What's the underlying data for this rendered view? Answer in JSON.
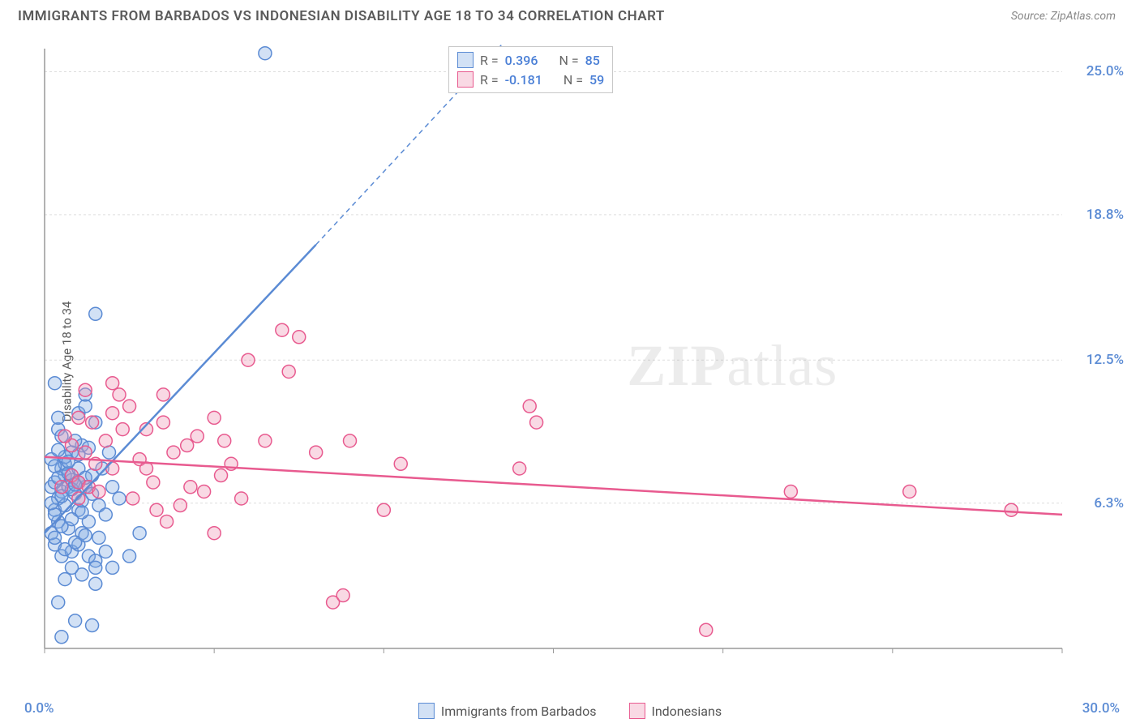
{
  "title": "IMMIGRANTS FROM BARBADOS VS INDONESIAN DISABILITY AGE 18 TO 34 CORRELATION CHART",
  "source": "Source: ZipAtlas.com",
  "watermark": {
    "bold": "ZIP",
    "rest": "atlas"
  },
  "y_axis_label": "Disability Age 18 to 34",
  "chart": {
    "type": "scatter",
    "xlim": [
      0,
      30
    ],
    "ylim": [
      0,
      26
    ],
    "x_ticks": [
      0,
      5,
      10,
      15,
      20,
      25,
      30
    ],
    "y_ticks": [
      6.3,
      12.5,
      18.8,
      25.0
    ],
    "x_origin_label": "0.0%",
    "x_max_label": "30.0%",
    "y_tick_labels": [
      "6.3%",
      "12.5%",
      "18.8%",
      "25.0%"
    ],
    "background_color": "#ffffff",
    "grid_color": "#dddddd",
    "axis_color": "#999999",
    "marker_radius": 8,
    "marker_stroke_width": 1.5,
    "line_width": 2.5
  },
  "series": [
    {
      "name": "Immigrants from Barbados",
      "fill": "rgba(126,169,227,0.35)",
      "stroke": "#5b8bd4",
      "R": "0.396",
      "N": "85",
      "regression": {
        "x1": 0,
        "y1": 5.0,
        "x2": 8.0,
        "y2": 17.5,
        "dash_from_x": 8.0,
        "dash_to_x": 14.0,
        "dash_to_y": 27.0
      },
      "points": [
        [
          0.2,
          7.0
        ],
        [
          0.3,
          7.2
        ],
        [
          0.4,
          6.5
        ],
        [
          0.5,
          6.8
        ],
        [
          0.6,
          7.5
        ],
        [
          0.3,
          6.0
        ],
        [
          0.4,
          5.5
        ],
        [
          0.7,
          7.0
        ],
        [
          0.8,
          7.3
        ],
        [
          0.5,
          7.8
        ],
        [
          0.6,
          8.0
        ],
        [
          0.9,
          6.7
        ],
        [
          1.0,
          7.2
        ],
        [
          0.4,
          9.5
        ],
        [
          1.2,
          7.0
        ],
        [
          0.3,
          4.5
        ],
        [
          0.5,
          4.0
        ],
        [
          0.8,
          4.2
        ],
        [
          1.0,
          4.5
        ],
        [
          1.3,
          4.0
        ],
        [
          1.5,
          3.8
        ],
        [
          1.8,
          4.2
        ],
        [
          0.6,
          3.0
        ],
        [
          1.1,
          3.2
        ],
        [
          0.4,
          2.0
        ],
        [
          0.9,
          1.2
        ],
        [
          1.4,
          1.0
        ],
        [
          0.5,
          0.5
        ],
        [
          0.3,
          11.5
        ],
        [
          1.0,
          10.2
        ],
        [
          0.4,
          10.0
        ],
        [
          1.5,
          9.8
        ],
        [
          1.2,
          10.5
        ],
        [
          0.8,
          8.5
        ],
        [
          1.0,
          6.0
        ],
        [
          1.3,
          5.5
        ],
        [
          1.6,
          6.2
        ],
        [
          1.8,
          5.8
        ],
        [
          2.0,
          7.0
        ],
        [
          2.2,
          6.5
        ],
        [
          2.5,
          4.0
        ],
        [
          2.8,
          5.0
        ],
        [
          2.0,
          3.5
        ],
        [
          1.5,
          2.8
        ],
        [
          0.7,
          5.2
        ],
        [
          1.1,
          8.8
        ],
        [
          0.2,
          8.2
        ],
        [
          0.6,
          6.2
        ],
        [
          1.4,
          7.5
        ],
        [
          1.7,
          7.8
        ],
        [
          1.9,
          8.5
        ],
        [
          0.9,
          9.0
        ],
        [
          0.5,
          9.2
        ],
        [
          0.3,
          5.8
        ],
        [
          1.1,
          5.0
        ],
        [
          1.6,
          4.8
        ],
        [
          0.8,
          3.5
        ],
        [
          1.2,
          11.0
        ],
        [
          1.5,
          14.5
        ],
        [
          6.5,
          25.8
        ],
        [
          0.4,
          7.4
        ],
        [
          0.7,
          7.6
        ],
        [
          1.0,
          7.8
        ],
        [
          0.2,
          6.3
        ],
        [
          0.5,
          6.6
        ],
        [
          0.8,
          6.9
        ],
        [
          1.1,
          6.4
        ],
        [
          1.4,
          6.7
        ],
        [
          0.3,
          7.9
        ],
        [
          0.6,
          8.3
        ],
        [
          0.9,
          7.1
        ],
        [
          1.2,
          7.4
        ],
        [
          0.4,
          8.6
        ],
        [
          0.7,
          8.1
        ],
        [
          1.0,
          8.4
        ],
        [
          1.3,
          8.7
        ],
        [
          0.2,
          5.0
        ],
        [
          0.5,
          5.3
        ],
        [
          0.8,
          5.6
        ],
        [
          1.1,
          5.9
        ],
        [
          0.3,
          4.8
        ],
        [
          0.6,
          4.3
        ],
        [
          0.9,
          4.6
        ],
        [
          1.2,
          4.9
        ],
        [
          1.5,
          3.5
        ]
      ]
    },
    {
      "name": "Indonesians",
      "fill": "rgba(238,145,177,0.35)",
      "stroke": "#e85a8f",
      "R": "-0.181",
      "N": "59",
      "regression": {
        "x1": 0,
        "y1": 8.3,
        "x2": 30,
        "y2": 5.8,
        "dash_from_x": null
      },
      "points": [
        [
          0.5,
          7.0
        ],
        [
          0.8,
          7.5
        ],
        [
          1.0,
          7.2
        ],
        [
          1.2,
          8.5
        ],
        [
          1.5,
          8.0
        ],
        [
          1.8,
          9.0
        ],
        [
          2.0,
          7.8
        ],
        [
          2.5,
          10.5
        ],
        [
          2.2,
          11.0
        ],
        [
          3.0,
          9.5
        ],
        [
          3.2,
          7.2
        ],
        [
          3.5,
          11.0
        ],
        [
          3.8,
          8.5
        ],
        [
          4.0,
          6.2
        ],
        [
          4.2,
          8.8
        ],
        [
          4.5,
          9.2
        ],
        [
          5.0,
          5.0
        ],
        [
          5.2,
          7.5
        ],
        [
          5.5,
          8.0
        ],
        [
          5.8,
          6.5
        ],
        [
          6.0,
          12.5
        ],
        [
          6.5,
          9.0
        ],
        [
          7.0,
          13.8
        ],
        [
          7.2,
          12.0
        ],
        [
          7.5,
          13.5
        ],
        [
          8.0,
          8.5
        ],
        [
          8.5,
          2.0
        ],
        [
          8.8,
          2.3
        ],
        [
          9.0,
          9.0
        ],
        [
          10.0,
          6.0
        ],
        [
          10.5,
          8.0
        ],
        [
          14.0,
          7.8
        ],
        [
          14.3,
          10.5
        ],
        [
          14.5,
          9.8
        ],
        [
          19.5,
          0.8
        ],
        [
          22.0,
          6.8
        ],
        [
          25.5,
          6.8
        ],
        [
          28.5,
          6.0
        ],
        [
          1.0,
          6.5
        ],
        [
          1.3,
          7.0
        ],
        [
          1.6,
          6.8
        ],
        [
          2.3,
          9.5
        ],
        [
          2.8,
          8.2
        ],
        [
          3.3,
          6.0
        ],
        [
          3.6,
          5.5
        ],
        [
          4.3,
          7.0
        ],
        [
          4.7,
          6.8
        ],
        [
          5.0,
          10.0
        ],
        [
          5.3,
          9.0
        ],
        [
          2.0,
          11.5
        ],
        [
          2.6,
          6.5
        ],
        [
          3.0,
          7.8
        ],
        [
          1.4,
          9.8
        ],
        [
          1.0,
          10.0
        ],
        [
          2.0,
          10.2
        ],
        [
          1.2,
          11.2
        ],
        [
          3.5,
          9.8
        ],
        [
          0.8,
          8.8
        ],
        [
          0.6,
          9.2
        ]
      ]
    }
  ],
  "stat_legend": {
    "r_label": "R =",
    "n_label": "N ="
  },
  "bottom_legend": {
    "items": [
      "Immigrants from Barbados",
      "Indonesians"
    ]
  }
}
